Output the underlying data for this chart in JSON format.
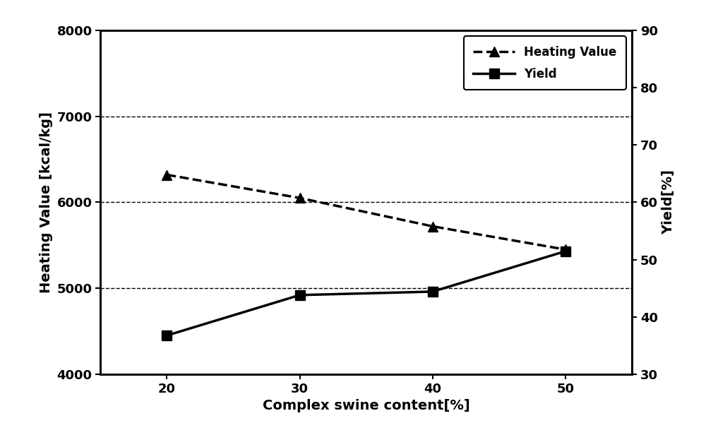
{
  "x": [
    20,
    30,
    40,
    50
  ],
  "heating_value": [
    6320,
    6050,
    5720,
    5450
  ],
  "yield_kcal": [
    4450,
    4920,
    4960,
    5430
  ],
  "xlabel": "Complex swine content[%]",
  "ylabel_left": "Heating Value [kcal/kg]",
  "ylabel_right": "Yield[%]",
  "legend_heating": "Heating Value",
  "legend_yield": "Yield",
  "ylim_left": [
    4000,
    8000
  ],
  "ylim_right": [
    30,
    90
  ],
  "xlim": [
    15,
    55
  ],
  "xticks": [
    20,
    30,
    40,
    50
  ],
  "yticks_left": [
    4000,
    5000,
    6000,
    7000,
    8000
  ],
  "yticks_right": [
    30,
    40,
    50,
    60,
    70,
    80,
    90
  ],
  "grid_color": "#000000",
  "line_color": "#000000",
  "background_color": "#ffffff",
  "xlabel_fontsize": 14,
  "ylabel_fontsize": 14,
  "tick_fontsize": 13,
  "legend_fontsize": 12,
  "linewidth": 2.5,
  "markersize": 10,
  "spine_linewidth": 2.0
}
